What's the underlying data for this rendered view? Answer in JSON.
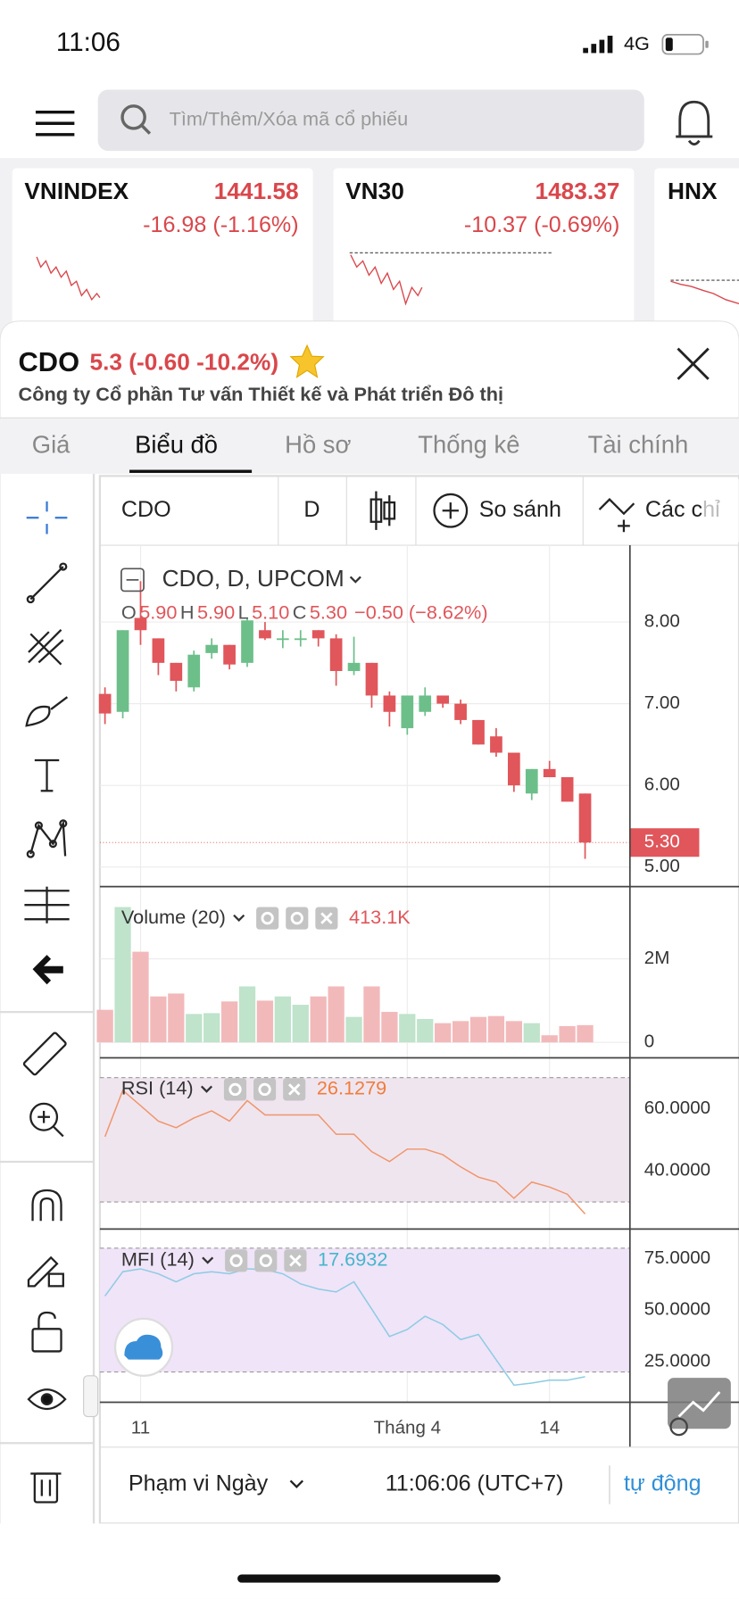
{
  "status_bar": {
    "time": "11:06",
    "network": "4G"
  },
  "search": {
    "placeholder": "Tìm/Thêm/Xóa mã cổ phiếu"
  },
  "index_cards": [
    {
      "name": "VNINDEX",
      "value": "1441.58",
      "change": "-16.98 (-1.16%)"
    },
    {
      "name": "VN30",
      "value": "1483.37",
      "change": "-10.37 (-0.69%)"
    },
    {
      "name": "HNX"
    }
  ],
  "stock": {
    "symbol": "CDO",
    "quote": "5.3 (-0.60 -10.2%)",
    "company": "Công ty Cổ phần Tư vấn Thiết kế và Phát triển Đô thị"
  },
  "tabs": [
    {
      "label": "Giá"
    },
    {
      "label": "Biểu đồ",
      "active": true
    },
    {
      "label": "Hồ sơ"
    },
    {
      "label": "Thống kê"
    },
    {
      "label": "Tài chính"
    }
  ],
  "toolbar": {
    "symbol": "CDO",
    "interval": "D",
    "compare": "So sánh",
    "indicators": "Các chỉ"
  },
  "chart_data": [
    {
      "type": "candlestick",
      "title": "CDO, D, UPCOM",
      "ohlc_legend": [
        {
          "key": "O",
          "value": "5.90"
        },
        {
          "key": "H",
          "value": "5.90"
        },
        {
          "key": "L",
          "value": "5.10"
        },
        {
          "key": "C",
          "value": "5.30"
        }
      ],
      "change": "−0.50 (−8.62%)",
      "categories": [
        null,
        null,
        "11",
        null,
        null,
        null,
        null,
        null,
        null,
        null,
        null,
        null,
        null,
        null,
        null,
        null,
        null,
        "Tháng 4",
        null,
        null,
        null,
        null,
        null,
        null,
        null,
        "14",
        null,
        null
      ],
      "open": [
        7.12,
        6.9,
        8.05,
        7.8,
        7.5,
        7.2,
        7.62,
        7.72,
        7.5,
        7.9,
        7.78,
        7.78,
        7.9,
        7.8,
        7.4,
        7.5,
        7.1,
        6.7,
        6.9,
        7.1,
        7.0,
        6.8,
        6.6,
        6.4,
        5.9,
        6.2,
        6.1,
        5.9
      ],
      "high": [
        7.2,
        7.9,
        8.5,
        7.8,
        7.5,
        7.65,
        7.8,
        7.72,
        8.05,
        8.0,
        7.9,
        7.9,
        7.9,
        7.85,
        7.82,
        7.5,
        7.15,
        7.1,
        7.2,
        7.1,
        7.05,
        6.8,
        6.7,
        6.4,
        6.2,
        6.3,
        6.1,
        5.9
      ],
      "low": [
        6.75,
        6.82,
        7.72,
        7.35,
        7.15,
        7.15,
        7.55,
        7.42,
        7.45,
        7.78,
        7.68,
        7.7,
        7.7,
        7.22,
        7.35,
        6.95,
        6.72,
        6.62,
        6.85,
        6.95,
        6.75,
        6.5,
        6.35,
        5.92,
        5.82,
        6.1,
        5.8,
        5.1
      ],
      "close": [
        6.88,
        7.9,
        7.9,
        7.5,
        7.28,
        7.6,
        7.72,
        7.48,
        8.02,
        7.8,
        7.8,
        7.8,
        7.8,
        7.4,
        7.5,
        7.1,
        6.9,
        7.1,
        7.1,
        7.0,
        6.8,
        6.5,
        6.4,
        6.0,
        6.2,
        6.1,
        5.8,
        5.3
      ],
      "up_color": "#6dbf8a",
      "down_color": "#e0565b",
      "last_price": {
        "value": 5.3,
        "label": "5.30"
      },
      "ylim": [
        4.76,
        8.94
      ],
      "yticks": [
        {
          "value": 5,
          "label": "5.00"
        },
        {
          "value": 6,
          "label": "6.00"
        },
        {
          "value": 7,
          "label": "7.00"
        },
        {
          "value": 8,
          "label": "8.00"
        }
      ],
      "grid": true
    },
    {
      "type": "bar",
      "title": "Volume (20)",
      "current_label": "413.1K",
      "values": [
        780000,
        3240000,
        2170000,
        1100000,
        1170000,
        680000,
        700000,
        980000,
        1340000,
        1000000,
        1100000,
        900000,
        1100000,
        1340000,
        610000,
        1340000,
        730000,
        680000,
        560000,
        460000,
        510000,
        610000,
        630000,
        510000,
        460000,
        170000,
        390000,
        413100
      ],
      "up_color": "#bfe3cb",
      "down_color": "#f2b9bb",
      "label_color": "#e0565b",
      "ylim": [
        -370000,
        3680000
      ],
      "yticks": [
        0,
        {
          "value": 2000000,
          "label": "2M"
        }
      ],
      "grid": true
    },
    {
      "type": "line",
      "title": "RSI (14)",
      "current_label": "26.1279",
      "values": [
        51,
        65.9,
        61,
        56,
        53.9,
        57,
        59.3,
        56,
        62.6,
        58,
        58,
        58,
        58,
        51.8,
        51.8,
        46.2,
        43,
        47,
        47,
        45.2,
        41.3,
        38,
        36.4,
        31.2,
        36.4,
        34.8,
        32.5,
        26.1279
      ],
      "color": "#f0956a",
      "label_color": "#f07d3c",
      "band": [
        30,
        70
      ],
      "band_color": "#efe5ef",
      "ylim": [
        21.3,
        75.7
      ],
      "yticks": [
        {
          "value": 40,
          "label": "40.0000"
        },
        {
          "value": 60,
          "label": "60.0000"
        }
      ],
      "grid": true
    },
    {
      "type": "line",
      "title": "MFI (14)",
      "current_label": "17.6932",
      "values": [
        56.8,
        68.6,
        70,
        67.6,
        63.7,
        67.6,
        68.6,
        67.6,
        70,
        69.6,
        67.6,
        62.7,
        60.2,
        58.8,
        63.7,
        50.5,
        37.2,
        40.6,
        47,
        43,
        35.7,
        38.2,
        25.9,
        13.6,
        14.6,
        16,
        16,
        17.6932
      ],
      "color": "#8ccbe3",
      "label_color": "#45b6cc",
      "band": [
        20,
        80
      ],
      "band_color": "#f0e4f8",
      "ylim": [
        5.3,
        88.3
      ],
      "yticks": [
        {
          "value": 25,
          "label": "25.0000"
        },
        {
          "value": 50,
          "label": "50.0000"
        },
        {
          "value": 75,
          "label": "75.0000"
        }
      ],
      "grid": true
    }
  ],
  "footer": {
    "range": "Phạm vi Ngày",
    "time": "11:06:06 (UTC+7)",
    "mode": "tự động"
  }
}
